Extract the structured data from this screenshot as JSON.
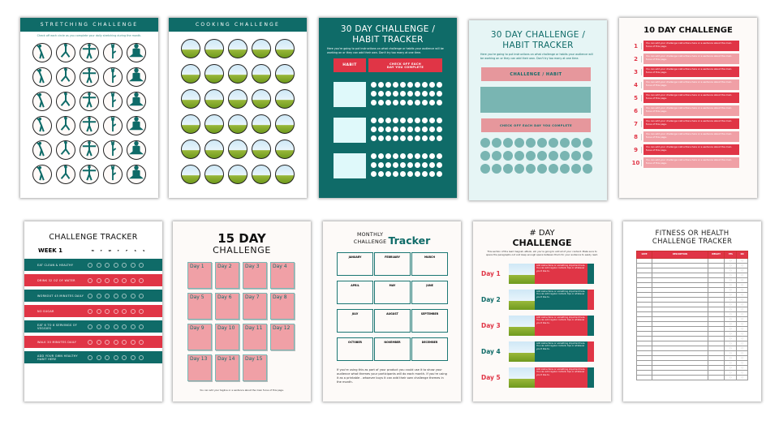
{
  "colors": {
    "teal": "#0f6b68",
    "red": "#e03546",
    "pink": "#f0a0a6",
    "light_cyan": "#dff9fa"
  },
  "stretching": {
    "title": "STRETCHING CHALLENGE",
    "subtitle": "Check off each circle as you complete your daily stretching during the month.",
    "poses": [
      "side-bend-icon",
      "lunge-icon",
      "arms-out-icon",
      "tree-pose-icon",
      "lotus-pose-icon"
    ],
    "rows": 6
  },
  "cooking": {
    "title": "COOKING CHALLENGE",
    "rows": 6,
    "cols": 5
  },
  "habit_dark": {
    "title": "30 DAY CHALLENGE / HABIT TRACKER",
    "desc": "Here you're going to put instructions on what challenge or habits your audience will be working on or they can add their own.  Don't try too many at one time.",
    "habit_label": "HABIT",
    "check_label": "CHECK OFF EACH DAY YOU COMPLETE",
    "habits": 3,
    "days": 30
  },
  "habit_light": {
    "title": "30 DAY CHALLENGE / HABIT TRACKER",
    "desc": "Here you're going to put instructions on what challenge or habits your audience will be working on or they can add their own.  Don't try too many at one time.",
    "habit_label": "CHALLENGE / HABIT",
    "check_label": "CHECK OFF EACH DAY YOU COMPLETE",
    "days": 30
  },
  "ten_day": {
    "title": "10 DAY CHALLENGE",
    "items": [
      {
        "n": "1",
        "text": "You can add your challenge instructions here or a sentence about the main focus of this page."
      },
      {
        "n": "2",
        "text": "You can add your challenge instructions here or a sentence about the main focus of this page."
      },
      {
        "n": "3",
        "text": "You can add your challenge instructions here or a sentence about the main focus of this page."
      },
      {
        "n": "4",
        "text": "You can add your challenge instructions here or a sentence about the main focus of this page."
      },
      {
        "n": "5",
        "text": "You can add your challenge instructions here or a sentence about the main focus of this page."
      },
      {
        "n": "6",
        "text": "You can add your challenge instructions here or a sentence about the main focus of this page."
      },
      {
        "n": "7",
        "text": "You can add your challenge instructions here or a sentence about the main focus of this page."
      },
      {
        "n": "8",
        "text": "You can add your challenge instructions here or a sentence about the main focus of this page."
      },
      {
        "n": "9",
        "text": "You can add your challenge instructions here or a sentence about the main focus of this page."
      },
      {
        "n": "10",
        "text": "You can add your challenge instructions here or a sentence about the main focus of this page."
      }
    ]
  },
  "tracker": {
    "title": "CHALLENGE TRACKER",
    "week": "WEEK 1",
    "days": [
      "M",
      "T",
      "W",
      "T",
      "F",
      "S",
      "S"
    ],
    "habits": [
      "EAT CLEAN & HEALTHY",
      "DRINK 32 OZ OF WATER",
      "WORKOUT 45 MINUTES DAILY",
      "NO SUGAR",
      "EAT 6 TO 8 SERVINGS OF VEGGIES",
      "WALK 30 MINUTES DAILY",
      "ADD YOUR OWN HEALTHY HABIT HERE"
    ]
  },
  "fifteen": {
    "title1": "15 DAY",
    "title2": "CHALLENGE",
    "days": [
      "Day 1",
      "Day 2",
      "Day 3",
      "Day 4",
      "Day 5",
      "Day 6",
      "Day 7",
      "Day 8",
      "Day 9",
      "Day 10",
      "Day 11",
      "Day 12",
      "Day 13",
      "Day 14",
      "Day 15"
    ],
    "footer": "You can add your tagline or a sentence about the main focus of this page."
  },
  "monthly": {
    "title1": "MONTHLY",
    "title2": "CHALLENGE",
    "title3": "Tracker",
    "months": [
      "JANUARY",
      "FEBRUARY",
      "MARCH",
      "APRIL",
      "MAY",
      "JUNE",
      "JULY",
      "AUGUST",
      "SEPTEMBER",
      "OCTOBER",
      "NOVEMBER",
      "DECEMBER"
    ],
    "footer": "If you're using this as part of your product you could use it to show your audience what themes your participants will do each month.  If you're using it as a printable - whoever buys it can add their own challenge themes in the month."
  },
  "hash_day": {
    "title1": "# DAY",
    "title2": "CHALLENGE",
    "intro": "This section of the lead magnet, eBook, etc you're going to add all of your content. Make sure to space the paragraphs out and keep enough space between them for your audience to easily read.",
    "days": [
      {
        "label": "Day 1",
        "text": "Add instructions or something important here. You can add regular content, tips or whatever you'd like to."
      },
      {
        "label": "Day 2",
        "text": "Add instructions or something important here. You can add regular content, tips or whatever you'd like to."
      },
      {
        "label": "Day 3",
        "text": "Add instructions or something important here. You can add regular content, tips or whatever you'd like to."
      },
      {
        "label": "Day 4",
        "text": "Add instructions or something important here. You can add regular content, tips or whatever you'd like to."
      },
      {
        "label": "Day 5",
        "text": "Add instructions or something important here. You can add regular content, tips or whatever you'd like to."
      }
    ]
  },
  "fitness": {
    "title1": "FITNESS OR HEALTH",
    "title2": "CHALLENGE TRACKER",
    "headers": [
      "DATE",
      "DESCRIPTION",
      "WEIGHT",
      "YES",
      "NO"
    ],
    "rows": 25,
    "check_glyph": "○"
  }
}
